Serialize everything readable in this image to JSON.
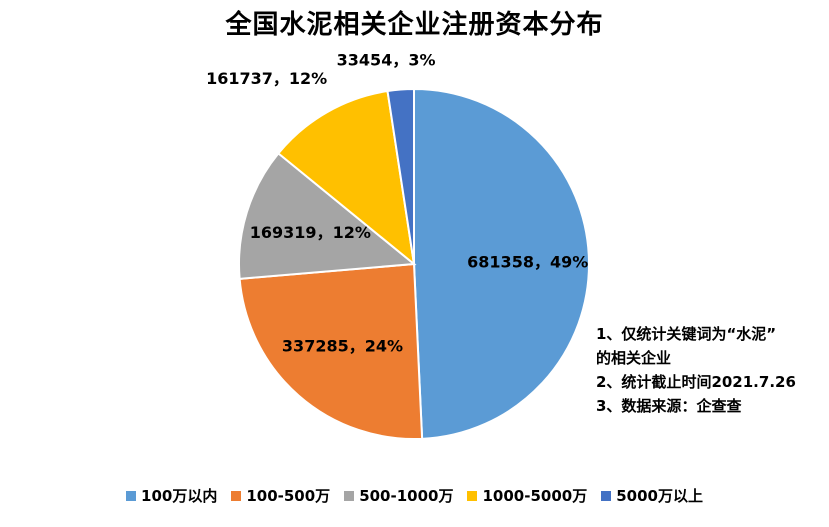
{
  "chart_data": {
    "type": "pie",
    "title": "全国水泥相关企业注册资本分布",
    "slices": [
      {
        "name": "100万以内",
        "value": 681358,
        "percent": "49%",
        "color": "#5B9BD5"
      },
      {
        "name": "100-500万",
        "value": 337285,
        "percent": "24%",
        "color": "#ED7D31"
      },
      {
        "name": "500-1000万",
        "value": 169319,
        "percent": "12%",
        "color": "#A5A5A5"
      },
      {
        "name": "1000-5000万",
        "value": 161737,
        "percent": "12%",
        "color": "#FFC000"
      },
      {
        "name": "5000万以上",
        "value": 33454,
        "percent": "3%",
        "color": "#4472C4"
      }
    ],
    "legend_position": "bottom"
  },
  "notes": [
    "1、仅统计关键词为“水泥”",
    "的相关企业",
    "2、统计截止时间2021.7.26",
    "3、数据来源：企查查"
  ]
}
